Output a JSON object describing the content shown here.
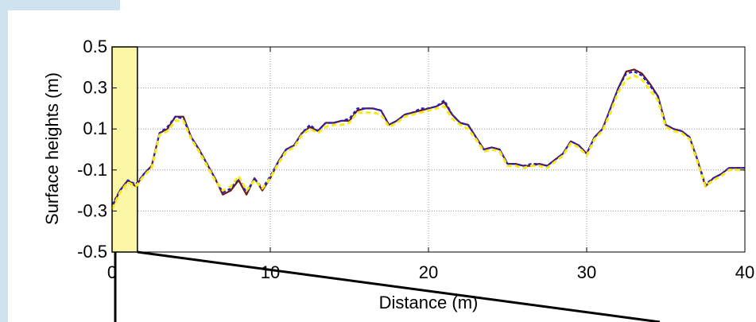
{
  "chart_data": {
    "type": "line",
    "xlabel": "Distance (m)",
    "ylabel": "Surface heights (m)",
    "xlim": [
      0,
      40
    ],
    "ylim": [
      -0.5,
      0.5
    ],
    "xticks": [
      "0",
      "10",
      "20",
      "30",
      "40"
    ],
    "yticks": [
      "0.5",
      "0.3",
      "0.1",
      "-0.1",
      "-0.3",
      "-0.5"
    ],
    "grid": true,
    "highlight_region": {
      "x": [
        0,
        1.6
      ],
      "y": [
        -0.5,
        0.5
      ],
      "color": "#fbf7a6"
    },
    "series": [
      {
        "color": "#6b1a1a",
        "x": [
          0,
          0.5,
          1,
          1.5,
          2,
          2.5,
          3,
          3.5,
          4,
          4.5,
          5,
          5.5,
          6,
          6.5,
          7,
          7.5,
          8,
          8.5,
          9,
          9.5,
          10,
          10.5,
          11,
          11.5,
          12,
          12.5,
          13,
          13.5,
          14,
          14.5,
          15,
          15.5,
          16,
          16.5,
          17,
          17.5,
          18,
          18.5,
          19,
          19.5,
          20,
          20.5,
          21,
          21.5,
          22,
          22.5,
          23,
          23.5,
          24,
          24.5,
          25,
          25.5,
          26,
          26.5,
          27,
          27.5,
          28,
          28.5,
          29,
          29.5,
          30,
          30.5,
          31,
          31.5,
          32,
          32.5,
          33,
          33.5,
          34,
          34.5,
          35,
          35.5,
          36,
          36.5,
          37,
          37.5,
          38,
          38.5,
          39,
          39.5,
          40
        ],
        "values": [
          -0.28,
          -0.2,
          -0.15,
          -0.18,
          -0.12,
          -0.08,
          0.08,
          0.1,
          0.16,
          0.16,
          0.06,
          0.0,
          -0.07,
          -0.14,
          -0.22,
          -0.2,
          -0.15,
          -0.22,
          -0.14,
          -0.2,
          -0.14,
          -0.06,
          0.0,
          0.02,
          0.08,
          0.11,
          0.09,
          0.13,
          0.13,
          0.14,
          0.14,
          0.19,
          0.2,
          0.2,
          0.19,
          0.12,
          0.14,
          0.17,
          0.18,
          0.19,
          0.2,
          0.21,
          0.23,
          0.17,
          0.13,
          0.12,
          0.06,
          0.0,
          0.01,
          0.0,
          -0.07,
          -0.07,
          -0.08,
          -0.08,
          -0.07,
          -0.08,
          -0.05,
          -0.02,
          0.04,
          0.02,
          -0.02,
          0.06,
          0.1,
          0.2,
          0.3,
          0.38,
          0.39,
          0.37,
          0.32,
          0.26,
          0.12,
          0.1,
          0.09,
          0.06,
          -0.05,
          -0.18,
          -0.14,
          -0.12,
          -0.09,
          -0.09,
          -0.09
        ]
      },
      {
        "color": "#1f1fcc",
        "x": [
          0,
          0.5,
          1,
          1.5,
          2,
          2.5,
          3,
          3.5,
          4,
          4.5,
          5,
          5.5,
          6,
          6.5,
          7,
          7.5,
          8,
          8.5,
          9,
          9.5,
          10,
          10.5,
          11,
          11.5,
          12,
          12.5,
          13,
          13.5,
          14,
          14.5,
          15,
          15.5,
          16,
          16.5,
          17,
          17.5,
          18,
          18.5,
          19,
          19.5,
          20,
          20.5,
          21,
          21.5,
          22,
          22.5,
          23,
          23.5,
          24,
          24.5,
          25,
          25.5,
          26,
          26.5,
          27,
          27.5,
          28,
          28.5,
          29,
          29.5,
          30,
          30.5,
          31,
          31.5,
          32,
          32.5,
          33,
          33.5,
          34,
          34.5,
          35,
          35.5,
          36,
          36.5,
          37,
          37.5,
          38,
          38.5,
          39,
          39.5,
          40
        ],
        "values": [
          -0.27,
          -0.2,
          -0.15,
          -0.17,
          -0.12,
          -0.08,
          0.08,
          0.11,
          0.16,
          0.15,
          0.06,
          0.0,
          -0.07,
          -0.14,
          -0.21,
          -0.19,
          -0.14,
          -0.21,
          -0.14,
          -0.19,
          -0.13,
          -0.06,
          0.0,
          0.02,
          0.08,
          0.12,
          0.09,
          0.13,
          0.13,
          0.14,
          0.15,
          0.2,
          0.2,
          0.2,
          0.19,
          0.12,
          0.14,
          0.17,
          0.18,
          0.2,
          0.2,
          0.21,
          0.24,
          0.17,
          0.13,
          0.12,
          0.06,
          0.0,
          0.01,
          0.0,
          -0.07,
          -0.07,
          -0.08,
          -0.07,
          -0.07,
          -0.08,
          -0.05,
          -0.02,
          0.04,
          0.02,
          -0.02,
          0.06,
          0.1,
          0.2,
          0.3,
          0.37,
          0.38,
          0.36,
          0.31,
          0.26,
          0.12,
          0.1,
          0.09,
          0.06,
          -0.05,
          -0.17,
          -0.14,
          -0.12,
          -0.09,
          -0.09,
          -0.09
        ]
      },
      {
        "color": "#f5ea1a",
        "x": [
          0,
          0.5,
          1,
          1.5,
          2,
          2.5,
          3,
          3.5,
          4,
          4.5,
          5,
          5.5,
          6,
          6.5,
          7,
          7.5,
          8,
          8.5,
          9,
          9.5,
          10,
          10.5,
          11,
          11.5,
          12,
          12.5,
          13,
          13.5,
          14,
          14.5,
          15,
          15.5,
          16,
          16.5,
          17,
          17.5,
          18,
          18.5,
          19,
          19.5,
          20,
          20.5,
          21,
          21.5,
          22,
          22.5,
          23,
          23.5,
          24,
          24.5,
          25,
          25.5,
          26,
          26.5,
          27,
          27.5,
          28,
          28.5,
          29,
          29.5,
          30,
          30.5,
          31,
          31.5,
          32,
          32.5,
          33,
          33.5,
          34,
          34.5,
          35,
          35.5,
          36,
          36.5,
          37,
          37.5,
          38,
          38.5,
          39,
          39.5,
          40
        ],
        "values": [
          -0.29,
          -0.21,
          -0.16,
          -0.18,
          -0.13,
          -0.09,
          0.07,
          0.09,
          0.14,
          0.14,
          0.05,
          -0.01,
          -0.08,
          -0.15,
          -0.2,
          -0.18,
          -0.13,
          -0.2,
          -0.15,
          -0.19,
          -0.14,
          -0.07,
          -0.01,
          0.01,
          0.07,
          0.1,
          0.08,
          0.11,
          0.12,
          0.12,
          0.13,
          0.18,
          0.18,
          0.18,
          0.17,
          0.11,
          0.13,
          0.16,
          0.17,
          0.18,
          0.19,
          0.2,
          0.21,
          0.15,
          0.12,
          0.1,
          0.05,
          -0.01,
          0.0,
          -0.01,
          -0.08,
          -0.08,
          -0.09,
          -0.08,
          -0.08,
          -0.09,
          -0.06,
          -0.03,
          0.03,
          0.01,
          -0.03,
          0.05,
          0.09,
          0.18,
          0.28,
          0.34,
          0.36,
          0.34,
          0.29,
          0.24,
          0.11,
          0.09,
          0.08,
          0.05,
          -0.06,
          -0.18,
          -0.15,
          -0.13,
          -0.1,
          -0.1,
          -0.1
        ]
      }
    ]
  }
}
